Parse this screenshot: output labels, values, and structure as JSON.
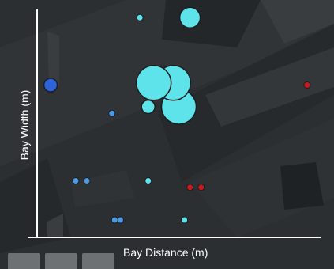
{
  "chart_data": {
    "type": "scatter",
    "title": "",
    "xlabel": "Bay Distance (m)",
    "ylabel": "Bay Width (m)",
    "xlim": [
      0,
      100
    ],
    "ylim": [
      0,
      100
    ],
    "grid": false,
    "legend": "none",
    "series": [
      {
        "color": "#5fe3eb",
        "points": [
          {
            "x": 36,
            "y": 97,
            "size": 1
          },
          {
            "x": 54,
            "y": 97,
            "size": 3
          },
          {
            "x": 41,
            "y": 67,
            "size": 5
          },
          {
            "x": 48,
            "y": 67,
            "size": 5
          },
          {
            "x": 39,
            "y": 56,
            "size": 2
          },
          {
            "x": 50,
            "y": 56,
            "size": 5
          },
          {
            "x": 39,
            "y": 22,
            "size": 1
          },
          {
            "x": 52,
            "y": 4,
            "size": 1
          }
        ]
      },
      {
        "color": "#4a9be3",
        "points": [
          {
            "x": 26,
            "y": 53,
            "size": 1
          },
          {
            "x": 13,
            "y": 22,
            "size": 1
          },
          {
            "x": 17,
            "y": 22,
            "size": 1
          },
          {
            "x": 27,
            "y": 4,
            "size": 1
          },
          {
            "x": 29,
            "y": 4,
            "size": 1
          }
        ]
      },
      {
        "color": "#2d63d8",
        "points": [
          {
            "x": 4,
            "y": 66,
            "size": 2
          }
        ]
      },
      {
        "color": "#c8191e",
        "points": [
          {
            "x": 54,
            "y": 19,
            "size": 1
          },
          {
            "x": 58,
            "y": 19,
            "size": 1
          },
          {
            "x": 96,
            "y": 66,
            "size": 1
          }
        ]
      }
    ]
  },
  "footer": {
    "tiles": [
      "",
      "",
      ""
    ]
  }
}
